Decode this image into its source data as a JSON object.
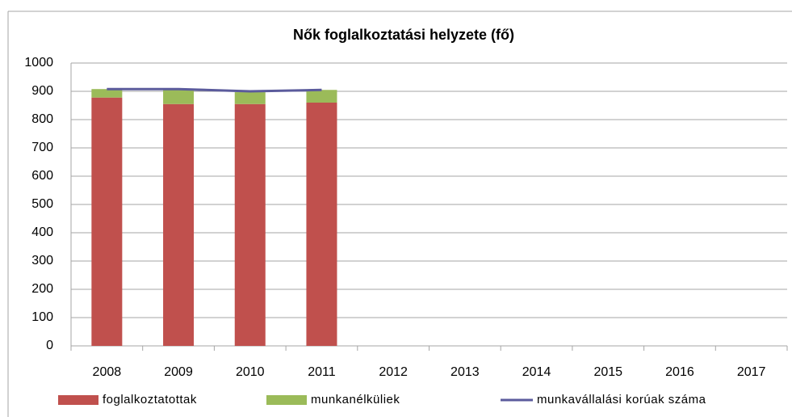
{
  "chart_data": {
    "type": "bar",
    "stacked": true,
    "title": "Nők foglalkoztatási helyzete (fő)",
    "categories": [
      "2008",
      "2009",
      "2010",
      "2011",
      "2012",
      "2013",
      "2014",
      "2015",
      "2016",
      "2017"
    ],
    "series": [
      {
        "name": "foglalkoztatottak",
        "color": "#c0504d",
        "values": [
          878,
          855,
          855,
          860,
          null,
          null,
          null,
          null,
          null,
          null
        ]
      },
      {
        "name": "munkanélküliek",
        "color": "#9bbb59",
        "values": [
          30,
          52,
          42,
          45,
          null,
          null,
          null,
          null,
          null,
          null
        ]
      },
      {
        "name": "munkavállalási korúak száma",
        "type": "line",
        "color": "#5b5b9c",
        "values": [
          908,
          908,
          900,
          905,
          null,
          null,
          null,
          null,
          null,
          null
        ]
      }
    ],
    "ylim": [
      0,
      1000
    ],
    "yticks": [
      0,
      100,
      200,
      300,
      400,
      500,
      600,
      700,
      800,
      900,
      1000
    ],
    "grid": true,
    "legend": "bottom"
  }
}
